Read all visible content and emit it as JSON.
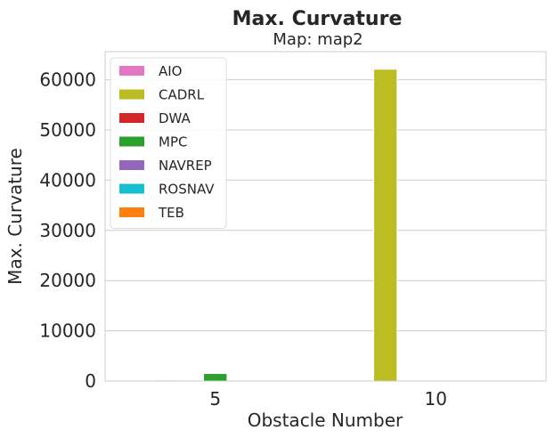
{
  "chart_data": {
    "type": "bar",
    "title": "Max. Curvature",
    "subtitle": "Map: map2",
    "xlabel": "Obstacle Number",
    "ylabel": "Max. Curvature",
    "categories": [
      "5",
      "10"
    ],
    "ylim": [
      0,
      65600
    ],
    "yticks": [
      0,
      10000,
      20000,
      30000,
      40000,
      50000,
      60000
    ],
    "ytick_labels": [
      "0",
      "10000",
      "20000",
      "30000",
      "40000",
      "50000",
      "60000"
    ],
    "grid": "horizontal",
    "legend_position": "top-left",
    "series": [
      {
        "name": "AIO",
        "color": "#e377c2",
        "values": [
          0,
          0
        ]
      },
      {
        "name": "CADRL",
        "color": "#bcbd22",
        "values": [
          200,
          62100
        ]
      },
      {
        "name": "DWA",
        "color": "#d62728",
        "values": [
          0,
          0
        ]
      },
      {
        "name": "MPC",
        "color": "#2ca02c",
        "values": [
          1500,
          0
        ]
      },
      {
        "name": "NAVREP",
        "color": "#9467bd",
        "values": [
          0,
          0
        ]
      },
      {
        "name": "ROSNAV",
        "color": "#17becf",
        "values": [
          0,
          0
        ]
      },
      {
        "name": "TEB",
        "color": "#ff7f0e",
        "values": [
          0,
          0
        ]
      }
    ]
  }
}
